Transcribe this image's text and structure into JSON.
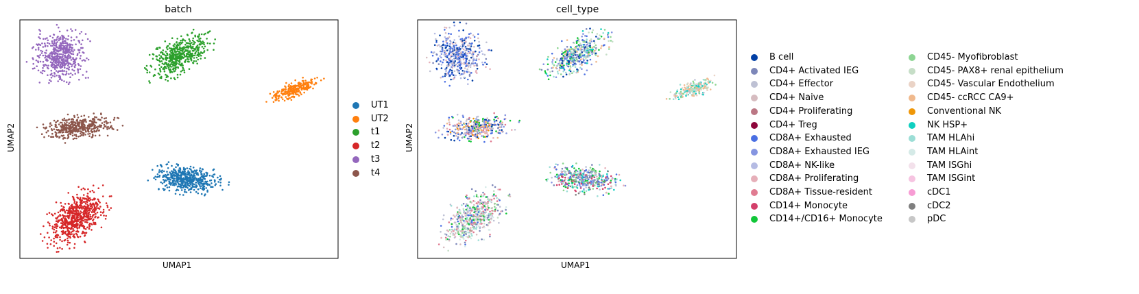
{
  "chart_data": [
    {
      "type": "scatter",
      "title": "batch",
      "xlabel": "UMAP1",
      "ylabel": "UMAP2",
      "grid": false,
      "legend_placement": "right",
      "series": [
        {
          "name": "UT1",
          "color": "#1f77b4"
        },
        {
          "name": "UT2",
          "color": "#ff7f0e"
        },
        {
          "name": "t1",
          "color": "#2ca02c"
        },
        {
          "name": "t2",
          "color": "#d62728"
        },
        {
          "name": "t3",
          "color": "#9467bd"
        },
        {
          "name": "t4",
          "color": "#8c564b"
        }
      ]
    },
    {
      "type": "scatter",
      "title": "cell_type",
      "xlabel": "UMAP1",
      "ylabel": "UMAP2",
      "grid": false,
      "legend_placement": "right (two columns)",
      "series": [
        {
          "name": "B cell",
          "color": "#023fa5"
        },
        {
          "name": "CD4+ Activated IEG",
          "color": "#7d87b9"
        },
        {
          "name": "CD4+ Effector",
          "color": "#bec1d4"
        },
        {
          "name": "CD4+ Naive",
          "color": "#d6bcc0"
        },
        {
          "name": "CD4+ Proliferating",
          "color": "#bb7784"
        },
        {
          "name": "CD4+ Treg",
          "color": "#8e063b"
        },
        {
          "name": "CD8A+ Exhausted",
          "color": "#4a6fe3"
        },
        {
          "name": "CD8A+ Exhausted IEG",
          "color": "#8595e1"
        },
        {
          "name": "CD8A+ NK-like",
          "color": "#b5bbe3"
        },
        {
          "name": "CD8A+ Proliferating",
          "color": "#e6afb9"
        },
        {
          "name": "CD8A+ Tissue-resident",
          "color": "#e07b91"
        },
        {
          "name": "CD14+ Monocyte",
          "color": "#d33f6a"
        },
        {
          "name": "CD14+/CD16+ Monocyte",
          "color": "#11c638"
        },
        {
          "name": "CD45- Myofibroblast",
          "color": "#8dd593"
        },
        {
          "name": "CD45- PAX8+ renal epithelium",
          "color": "#c6dec7"
        },
        {
          "name": "CD45- Vascular Endothelium",
          "color": "#ead3c6"
        },
        {
          "name": "CD45- ccRCC CA9+",
          "color": "#f0b98d"
        },
        {
          "name": "Conventional NK",
          "color": "#ef9708"
        },
        {
          "name": "NK HSP+",
          "color": "#0fcfc0"
        },
        {
          "name": "TAM HLAhi",
          "color": "#9cded6"
        },
        {
          "name": "TAM HLAint",
          "color": "#d5eae7"
        },
        {
          "name": "TAM ISGhi",
          "color": "#f3e1eb"
        },
        {
          "name": "TAM ISGint",
          "color": "#f6c4e1"
        },
        {
          "name": "cDC1",
          "color": "#f79cd4"
        },
        {
          "name": "cDC2",
          "color": "#7f7f7f"
        },
        {
          "name": "pDC",
          "color": "#c7c7c7"
        }
      ]
    }
  ]
}
